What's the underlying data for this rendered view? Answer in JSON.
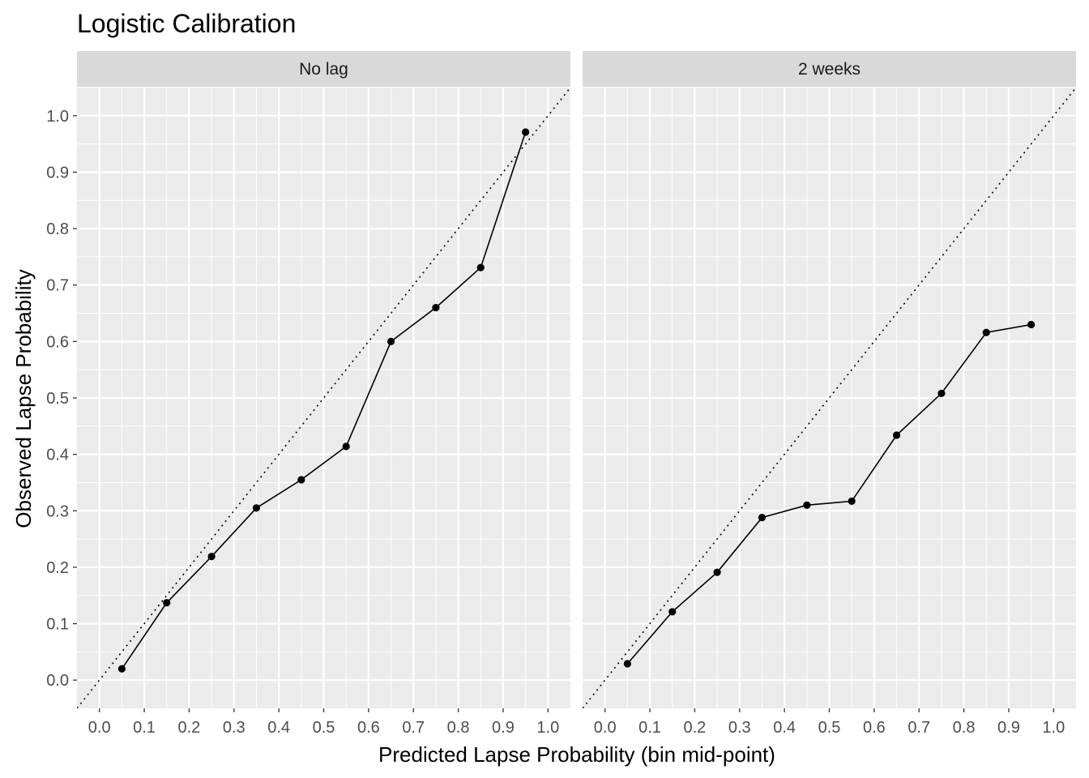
{
  "chart_data": {
    "type": "line",
    "title": "Logistic Calibration",
    "xlabel": "Predicted Lapse Probability (bin mid-point)",
    "ylabel": "Observed Lapse Probability",
    "xlim": [
      0.0,
      1.0
    ],
    "ylim": [
      0.0,
      1.0
    ],
    "x_ticks": [
      "0.0",
      "0.1",
      "0.2",
      "0.3",
      "0.4",
      "0.5",
      "0.6",
      "0.7",
      "0.8",
      "0.9",
      "1.0"
    ],
    "y_ticks": [
      "0.0",
      "0.1",
      "0.2",
      "0.3",
      "0.4",
      "0.5",
      "0.6",
      "0.7",
      "0.8",
      "0.9",
      "1.0"
    ],
    "grid": true,
    "reference_line": "y = x (dotted)",
    "panels": [
      {
        "strip": "No lag",
        "x": [
          0.05,
          0.15,
          0.25,
          0.35,
          0.45,
          0.55,
          0.65,
          0.75,
          0.85,
          0.95
        ],
        "y": [
          0.02,
          0.137,
          0.219,
          0.305,
          0.355,
          0.414,
          0.6,
          0.66,
          0.731,
          0.971
        ]
      },
      {
        "strip": "2 weeks",
        "x": [
          0.05,
          0.15,
          0.25,
          0.35,
          0.45,
          0.55,
          0.65,
          0.75,
          0.85,
          0.95
        ],
        "y": [
          0.029,
          0.121,
          0.191,
          0.288,
          0.31,
          0.317,
          0.434,
          0.508,
          0.616,
          0.63
        ]
      }
    ],
    "colors": {
      "panel_bg": "#ebebeb",
      "strip_bg": "#d9d9d9",
      "grid": "#ffffff",
      "series": "#000000"
    }
  }
}
